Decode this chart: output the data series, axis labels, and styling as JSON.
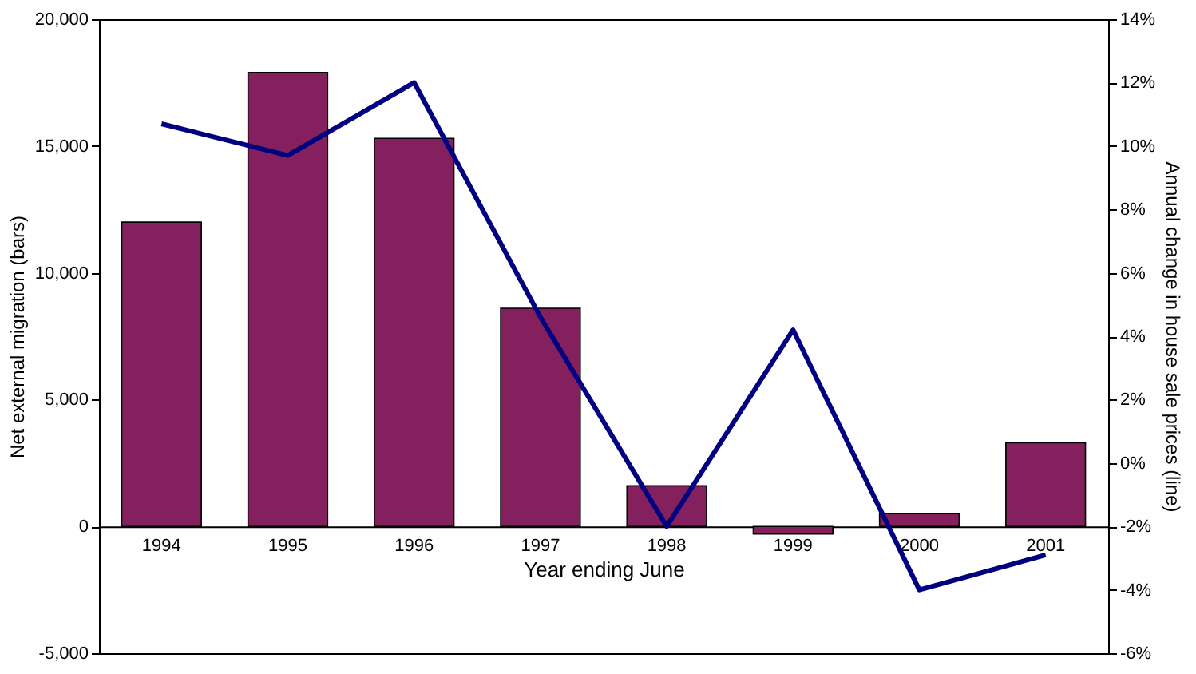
{
  "chart_data": {
    "type": "bar",
    "xlabel": "Year ending June",
    "ylabel": "Net external migration (bars)",
    "y2label": "Annual change in house sale prices (line)",
    "categories": [
      "1994",
      "1995",
      "1996",
      "1997",
      "1998",
      "1999",
      "2000",
      "2001"
    ],
    "series": [
      {
        "color": "#84205e",
        "values": [
          12000,
          17900,
          15300,
          8600,
          1600,
          -300,
          500,
          3300
        ]
      },
      {
        "type": "line",
        "axis": "y2",
        "color": "#000080",
        "values": [
          10.7,
          9.7,
          12.0,
          4.6,
          -2.0,
          4.2,
          -4.0,
          -2.9
        ]
      }
    ],
    "ylim": [
      -5000,
      20000
    ],
    "yticks": [
      {
        "value": -5000,
        "label": "-5,000"
      },
      {
        "value": 0,
        "label": "0"
      },
      {
        "value": 5000,
        "label": "5,000"
      },
      {
        "value": 10000,
        "label": "10,000"
      },
      {
        "value": 15000,
        "label": "15,000"
      },
      {
        "value": 20000,
        "label": "20,000"
      }
    ],
    "y2lim": [
      -6,
      14
    ],
    "y2ticks": [
      {
        "value": -6,
        "label": "-6%"
      },
      {
        "value": -4,
        "label": "-4%"
      },
      {
        "value": -2,
        "label": "-2%"
      },
      {
        "value": 0,
        "label": "0%"
      },
      {
        "value": 2,
        "label": "2%"
      },
      {
        "value": 4,
        "label": "4%"
      },
      {
        "value": 6,
        "label": "6%"
      },
      {
        "value": 8,
        "label": "8%"
      },
      {
        "value": 10,
        "label": "10%"
      },
      {
        "value": 12,
        "label": "12%"
      },
      {
        "value": 14,
        "label": "14%"
      }
    ],
    "grid": false,
    "legend": false,
    "marker": "none",
    "line_style": "solid"
  }
}
